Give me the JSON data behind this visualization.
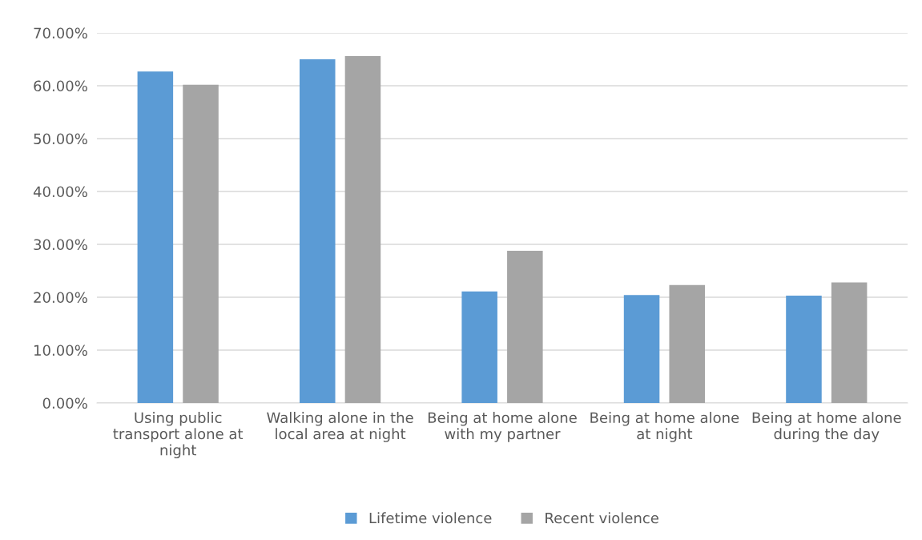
{
  "chart_data": {
    "type": "bar",
    "categories": [
      "Using public transport alone at night",
      "Walking alone in the local area at night",
      "Being at home alone with my partner",
      "Being at home alone at night",
      "Being at home alone during the day"
    ],
    "series": [
      {
        "name": "Lifetime violence",
        "color": "#5b9bd5",
        "values": [
          62.7,
          65.0,
          21.1,
          20.4,
          20.3
        ]
      },
      {
        "name": "Recent violence",
        "color": "#a5a5a5",
        "values": [
          60.2,
          65.6,
          28.8,
          22.3,
          22.8
        ]
      }
    ],
    "ylim": [
      0,
      70
    ],
    "yticks": [
      {
        "value": 0,
        "label": "0.00%"
      },
      {
        "value": 10,
        "label": "10.00%"
      },
      {
        "value": 20,
        "label": "20.00%"
      },
      {
        "value": 30,
        "label": "30.00%"
      },
      {
        "value": 40,
        "label": "40.00%"
      },
      {
        "value": 50,
        "label": "50.00%"
      },
      {
        "value": 60,
        "label": "60.00%"
      },
      {
        "value": 70,
        "label": "70.00%"
      }
    ],
    "grid": "y",
    "legend": "bottom"
  }
}
